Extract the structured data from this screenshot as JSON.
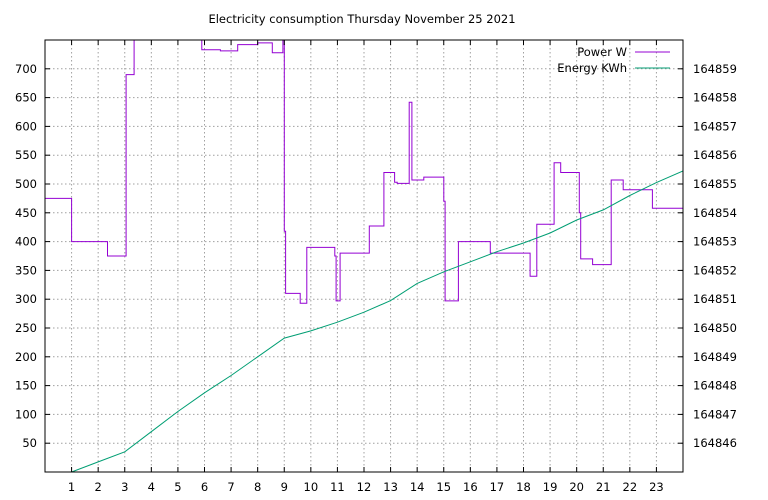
{
  "chart_data": {
    "type": "line",
    "title": "Electricity consumption Thursday November 25 2021",
    "xlabel": "",
    "ylabel": "",
    "y2label": "",
    "grid": true,
    "legend_position": "top-right",
    "xlim": [
      0,
      24
    ],
    "ylim": [
      0,
      750
    ],
    "y2lim": [
      164845,
      164860
    ],
    "xticks": [
      1,
      2,
      3,
      4,
      5,
      6,
      7,
      8,
      9,
      10,
      11,
      12,
      13,
      14,
      15,
      16,
      17,
      18,
      19,
      20,
      21,
      22,
      23
    ],
    "yticks": [
      50,
      100,
      150,
      200,
      250,
      300,
      350,
      400,
      450,
      500,
      550,
      600,
      650,
      700
    ],
    "y2ticks": [
      164846,
      164847,
      164848,
      164849,
      164850,
      164851,
      164852,
      164853,
      164854,
      164855,
      164856,
      164857,
      164858,
      164859
    ],
    "series": [
      {
        "name": "Power W",
        "axis": "left",
        "color": "#9400d3",
        "step": true,
        "points": [
          [
            0.0,
            475
          ],
          [
            1.0,
            400
          ],
          [
            2.35,
            375
          ],
          [
            3.05,
            690
          ],
          [
            3.35,
            750
          ],
          [
            4.0,
            750
          ],
          [
            5.9,
            733
          ],
          [
            6.6,
            731
          ],
          [
            7.25,
            742
          ],
          [
            8.0,
            745
          ],
          [
            8.55,
            728
          ],
          [
            8.95,
            750
          ],
          [
            9.0,
            418
          ],
          [
            9.05,
            310
          ],
          [
            9.6,
            293
          ],
          [
            9.85,
            390
          ],
          [
            10.9,
            375
          ],
          [
            10.95,
            297
          ],
          [
            11.1,
            380
          ],
          [
            12.2,
            427
          ],
          [
            12.75,
            520
          ],
          [
            13.15,
            503
          ],
          [
            13.25,
            501
          ],
          [
            13.7,
            642
          ],
          [
            13.8,
            507
          ],
          [
            14.25,
            512
          ],
          [
            15.0,
            470
          ],
          [
            15.05,
            297
          ],
          [
            15.55,
            400
          ],
          [
            16.75,
            380
          ],
          [
            18.25,
            340
          ],
          [
            18.5,
            430
          ],
          [
            19.15,
            537
          ],
          [
            19.4,
            520
          ],
          [
            20.1,
            450
          ],
          [
            20.15,
            370
          ],
          [
            20.6,
            360
          ],
          [
            21.3,
            507
          ],
          [
            21.75,
            490
          ],
          [
            22.85,
            458
          ],
          [
            24.0,
            458
          ]
        ]
      },
      {
        "name": "Energy KWh",
        "axis": "right",
        "color": "#009e73",
        "step": false,
        "points": [
          [
            1.0,
            164845.0
          ],
          [
            2.0,
            164845.35
          ],
          [
            3.0,
            164845.7
          ],
          [
            4.0,
            164846.4
          ],
          [
            5.0,
            164847.1
          ],
          [
            6.0,
            164847.75
          ],
          [
            7.0,
            164848.35
          ],
          [
            8.0,
            164849.0
          ],
          [
            9.0,
            164849.65
          ],
          [
            10.0,
            164849.9
          ],
          [
            11.0,
            164850.2
          ],
          [
            12.0,
            164850.55
          ],
          [
            13.0,
            164850.95
          ],
          [
            14.0,
            164851.55
          ],
          [
            15.0,
            164851.95
          ],
          [
            16.0,
            164852.3
          ],
          [
            17.0,
            164852.65
          ],
          [
            18.0,
            164852.95
          ],
          [
            19.0,
            164853.3
          ],
          [
            20.0,
            164853.75
          ],
          [
            21.0,
            164854.1
          ],
          [
            22.0,
            164854.6
          ],
          [
            23.0,
            164855.05
          ],
          [
            24.0,
            164855.45
          ]
        ]
      }
    ]
  }
}
